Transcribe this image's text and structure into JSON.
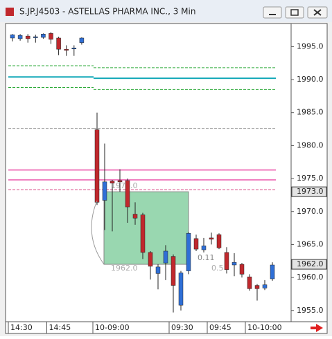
{
  "window_title": "S.JP.J4503 - ASTELLAS PHARMA INC., 3 Min",
  "chart_data": {
    "type": "candlestick",
    "categories": [
      "14:30",
      null,
      null,
      null,
      null,
      "14:45",
      null,
      null,
      null,
      null,
      "10-09:00",
      null,
      null,
      null,
      null,
      null,
      null,
      null,
      null,
      null,
      "09:30",
      null,
      null,
      null,
      null,
      "09:45",
      null,
      null,
      null,
      null,
      "10-10:00",
      null,
      null,
      null
    ],
    "open": [
      1996.3,
      1996.2,
      1996.6,
      1996.4,
      1996.4,
      1997.0,
      1996.3,
      1994.6,
      1994.7,
      1995.6,
      1982.4,
      1971.7,
      1974.6,
      1974.7,
      1974.7,
      1969.6,
      1969.5,
      1963.8,
      1960.6,
      1962.2,
      1963.2,
      1955.8,
      1961.0,
      1965.9,
      1964.2,
      1966.0,
      1966.5,
      1963.8,
      1961.9,
      1962.0,
      1960.1,
      1958.8,
      1958.4,
      1959.8
    ],
    "high": [
      1996.9,
      1996.9,
      1996.9,
      1996.8,
      1997.0,
      1997.2,
      1996.5,
      1995.2,
      1995.2,
      1996.4,
      1985.0,
      1980.3,
      1974.8,
      1976.4,
      1975.0,
      1971.4,
      1969.8,
      1964.0,
      1962.0,
      1964.9,
      1963.5,
      1961.0,
      1966.9,
      1966.5,
      1966.0,
      1966.8,
      1966.7,
      1964.6,
      1963.7,
      1962.2,
      1960.5,
      1959.0,
      1959.6,
      1962.3
    ],
    "low": [
      1995.8,
      1995.9,
      1995.6,
      1995.6,
      1996.2,
      1995.4,
      1993.7,
      1993.6,
      1993.6,
      1995.3,
      1971.0,
      1967.2,
      1967.0,
      1973.0,
      1968.3,
      1968.0,
      1962.8,
      1959.7,
      1958.2,
      1959.6,
      1954.7,
      1955.0,
      1960.5,
      1964.0,
      1963.8,
      1965.0,
      1964.3,
      1960.6,
      1960.2,
      1960.0,
      1958.0,
      1956.5,
      1958.1,
      1959.5
    ],
    "close": [
      1996.8,
      1996.7,
      1996.2,
      1996.5,
      1996.9,
      1996.1,
      1994.6,
      1994.5,
      1994.8,
      1996.3,
      1971.4,
      1974.5,
      1974.3,
      1974.5,
      1970.7,
      1969.0,
      1963.8,
      1961.7,
      1961.6,
      1964.0,
      1958.8,
      1960.7,
      1966.7,
      1964.3,
      1964.8,
      1965.8,
      1964.5,
      1961.2,
      1962.3,
      1960.5,
      1958.3,
      1958.3,
      1958.9,
      1961.9
    ],
    "up_color": "#2f6fd6",
    "down_color": "#c0282d",
    "ylim": [
      1953.3,
      1998.5
    ],
    "yticks": [
      {
        "value": 1955,
        "label": "1955.0"
      },
      {
        "value": 1960,
        "label": "1960.0"
      },
      {
        "value": 1965,
        "label": "1965.0"
      },
      {
        "value": 1970,
        "label": "1970.0"
      },
      {
        "value": 1975,
        "label": "1975.0"
      },
      {
        "value": 1980,
        "label": "1980.0"
      },
      {
        "value": 1985,
        "label": "1985.0"
      },
      {
        "value": 1990,
        "label": "1990.0"
      },
      {
        "value": 1995,
        "label": "1995.0"
      }
    ],
    "levels": [
      {
        "color": "#2eaa3a",
        "dash": true,
        "values": [
          1992.1,
          1991.8
        ]
      },
      {
        "color": "#12a8b8",
        "dash": false,
        "values": [
          1990.4,
          1990.2
        ]
      },
      {
        "color": "#2eaa3a",
        "dash": true,
        "values": [
          1988.8,
          1988.5
        ]
      },
      {
        "color": "#999999",
        "dash": true,
        "values": [
          1982.6,
          1982.6
        ]
      },
      {
        "color": "#f080c0",
        "dash": false,
        "values": [
          1976.3,
          1976.3
        ]
      },
      {
        "color": "#f080c0",
        "dash": false,
        "values": [
          1974.8,
          1974.8
        ]
      },
      {
        "color": "#d84080",
        "dash": true,
        "values": [
          1973.3,
          1973.3
        ]
      }
    ],
    "box": {
      "color": "#8fd3a8",
      "top": {
        "value": 1973,
        "label": "1973.0"
      },
      "bottom": {
        "value": 1962,
        "label": "1962.0"
      },
      "notes": [
        "0.11",
        "0.5"
      ]
    }
  }
}
